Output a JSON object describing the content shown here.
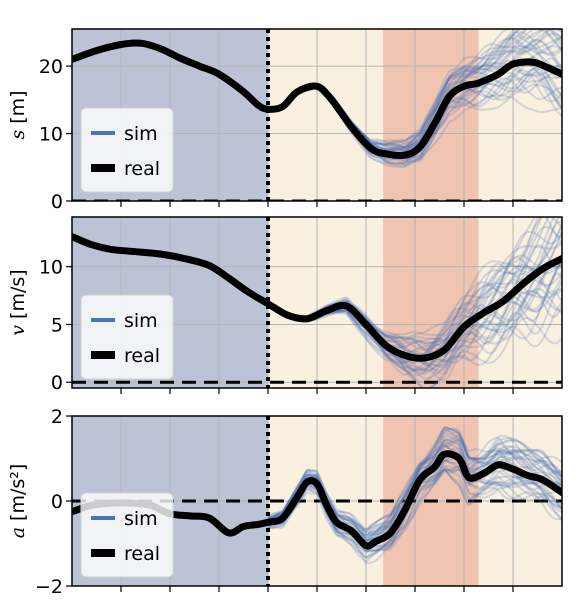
{
  "chart_data": [
    {
      "type": "line",
      "ylabel_var": "s",
      "ylabel_unit": "[m]",
      "ylim": [
        0,
        25.5
      ],
      "yticks": [
        0,
        10,
        20
      ],
      "xlim": [
        0,
        10
      ],
      "regions": [
        {
          "x0": 0,
          "x1": 4,
          "color": "#bcc3d6"
        },
        {
          "x0": 4,
          "x1": 6.35,
          "color": "#faf0df"
        },
        {
          "x0": 6.35,
          "x1": 8.3,
          "color": "#efc5b1"
        },
        {
          "x0": 8.3,
          "x1": 10,
          "color": "#faf0df"
        }
      ],
      "divider_x": 4,
      "zero_line_y": 0,
      "legend": {
        "position": "lower-left",
        "entries": [
          "sim",
          "real"
        ]
      },
      "series": [
        {
          "name": "real",
          "x": [
            0,
            0.5,
            1.0,
            1.4,
            1.8,
            2.2,
            2.6,
            3.0,
            3.5,
            3.8,
            4.0,
            4.3,
            4.6,
            5.0,
            5.3,
            5.7,
            6.1,
            6.4,
            6.8,
            7.1,
            7.4,
            7.7,
            8.0,
            8.3,
            8.7,
            9.0,
            9.4,
            9.7,
            10.0
          ],
          "y": [
            21,
            22.3,
            23.2,
            23.4,
            22.6,
            21.2,
            20.0,
            18.8,
            16.2,
            14.2,
            13.6,
            14.0,
            16.2,
            17.0,
            15.0,
            11.0,
            7.8,
            7.0,
            6.8,
            8.0,
            11.5,
            15.5,
            17.0,
            17.5,
            18.8,
            20.3,
            20.6,
            19.8,
            18.8
          ]
        },
        {
          "name": "sim",
          "x_start": 4.0,
          "band_mean": [
            [
              4.3,
              14.0
            ],
            [
              4.6,
              16.2
            ],
            [
              5.0,
              17.0
            ],
            [
              5.3,
              15.0
            ],
            [
              5.7,
              11.0
            ],
            [
              6.1,
              7.8
            ],
            [
              6.4,
              7.0
            ],
            [
              6.8,
              6.8
            ],
            [
              7.1,
              8.0
            ],
            [
              7.4,
              11.5
            ],
            [
              7.7,
              15.5
            ],
            [
              8.0,
              17.0
            ],
            [
              8.3,
              17.5
            ],
            [
              8.7,
              18.8
            ],
            [
              9.0,
              20.3
            ],
            [
              9.4,
              20.6
            ],
            [
              9.7,
              19.8
            ],
            [
              10.0,
              18.8
            ]
          ],
          "band_spread_max": 8
        }
      ]
    },
    {
      "type": "line",
      "ylabel_var": "v",
      "ylabel_unit": "[m/s]",
      "ylim": [
        -0.5,
        14.3
      ],
      "yticks": [
        0,
        5,
        10
      ],
      "xlim": [
        0,
        10
      ],
      "regions": [
        {
          "x0": 0,
          "x1": 4,
          "color": "#bcc3d6"
        },
        {
          "x0": 4,
          "x1": 6.35,
          "color": "#faf0df"
        },
        {
          "x0": 6.35,
          "x1": 8.3,
          "color": "#efc5b1"
        },
        {
          "x0": 8.3,
          "x1": 10,
          "color": "#faf0df"
        }
      ],
      "divider_x": 4,
      "zero_line_y": 0,
      "legend": {
        "position": "lower-left",
        "entries": [
          "sim",
          "real"
        ]
      },
      "series": [
        {
          "name": "real",
          "x": [
            0,
            0.4,
            0.8,
            1.3,
            1.8,
            2.3,
            2.8,
            3.2,
            3.6,
            4.0,
            4.4,
            4.8,
            5.2,
            5.6,
            6.0,
            6.4,
            6.8,
            7.2,
            7.6,
            8.0,
            8.4,
            8.8,
            9.2,
            9.6,
            10.0
          ],
          "y": [
            12.6,
            11.9,
            11.5,
            11.3,
            11.1,
            10.7,
            10.1,
            9.0,
            7.8,
            6.8,
            5.8,
            5.5,
            6.2,
            6.6,
            5.0,
            3.2,
            2.3,
            2.1,
            2.8,
            4.8,
            6.0,
            7.0,
            8.5,
            9.8,
            10.7
          ]
        },
        {
          "name": "sim",
          "x_start": 4.0,
          "band_mean": [
            [
              4.4,
              5.8
            ],
            [
              4.8,
              5.5
            ],
            [
              5.2,
              6.2
            ],
            [
              5.6,
              6.6
            ],
            [
              6.0,
              5.0
            ],
            [
              6.4,
              3.2
            ],
            [
              6.8,
              2.3
            ],
            [
              7.2,
              2.1
            ],
            [
              7.6,
              2.8
            ],
            [
              8.0,
              4.8
            ],
            [
              8.4,
              6.0
            ],
            [
              8.8,
              7.0
            ],
            [
              9.2,
              8.5
            ],
            [
              9.6,
              9.8
            ],
            [
              10.0,
              10.7
            ]
          ],
          "band_spread_max": 7
        }
      ]
    },
    {
      "type": "line",
      "ylabel_var": "a",
      "ylabel_unit": "[m/s²]",
      "ylim": [
        -2,
        2
      ],
      "yticks": [
        -2,
        0,
        2
      ],
      "xlim": [
        0,
        10
      ],
      "regions": [
        {
          "x0": 0,
          "x1": 4,
          "color": "#bcc3d6"
        },
        {
          "x0": 4,
          "x1": 6.35,
          "color": "#faf0df"
        },
        {
          "x0": 6.35,
          "x1": 8.3,
          "color": "#efc5b1"
        },
        {
          "x0": 8.3,
          "x1": 10,
          "color": "#faf0df"
        }
      ],
      "divider_x": 4,
      "zero_line_y": 0,
      "legend": {
        "position": "lower-left",
        "entries": [
          "sim",
          "real"
        ]
      },
      "series": [
        {
          "name": "real",
          "x": [
            0,
            0.4,
            0.8,
            1.2,
            1.6,
            2.0,
            2.4,
            2.8,
            3.2,
            3.5,
            3.8,
            4.0,
            4.3,
            4.6,
            4.8,
            5.0,
            5.2,
            5.4,
            5.7,
            6.0,
            6.2,
            6.5,
            6.8,
            7.1,
            7.4,
            7.6,
            7.9,
            8.1,
            8.4,
            8.7,
            9.0,
            9.3,
            9.6,
            10.0
          ],
          "y": [
            -0.25,
            -0.1,
            -0.05,
            -0.05,
            -0.1,
            -0.3,
            -0.35,
            -0.4,
            -0.75,
            -0.6,
            -0.55,
            -0.5,
            -0.4,
            0.1,
            0.45,
            0.4,
            -0.1,
            -0.5,
            -0.7,
            -1.05,
            -0.95,
            -0.75,
            -0.2,
            0.5,
            0.8,
            1.1,
            1.0,
            0.55,
            0.65,
            0.85,
            0.75,
            0.6,
            0.5,
            0.2
          ]
        },
        {
          "name": "sim",
          "x_start": 4.0,
          "band_mean": [
            [
              4.3,
              -0.4
            ],
            [
              4.6,
              0.1
            ],
            [
              4.8,
              0.45
            ],
            [
              5.0,
              0.4
            ],
            [
              5.2,
              -0.1
            ],
            [
              5.4,
              -0.5
            ],
            [
              5.7,
              -0.7
            ],
            [
              6.0,
              -1.05
            ],
            [
              6.2,
              -0.95
            ],
            [
              6.5,
              -0.75
            ],
            [
              6.8,
              -0.2
            ],
            [
              7.1,
              0.5
            ],
            [
              7.4,
              0.8
            ],
            [
              7.6,
              1.1
            ],
            [
              7.9,
              1.0
            ],
            [
              8.1,
              0.55
            ],
            [
              8.4,
              0.65
            ],
            [
              8.7,
              0.85
            ],
            [
              9.0,
              0.75
            ],
            [
              9.3,
              0.6
            ],
            [
              9.6,
              0.5
            ],
            [
              10.0,
              0.2
            ]
          ],
          "band_spread_max": 0.7
        }
      ]
    }
  ],
  "colors": {
    "sim": "#4a73b8",
    "real": "#000000",
    "grid": "#b4b4b4"
  }
}
